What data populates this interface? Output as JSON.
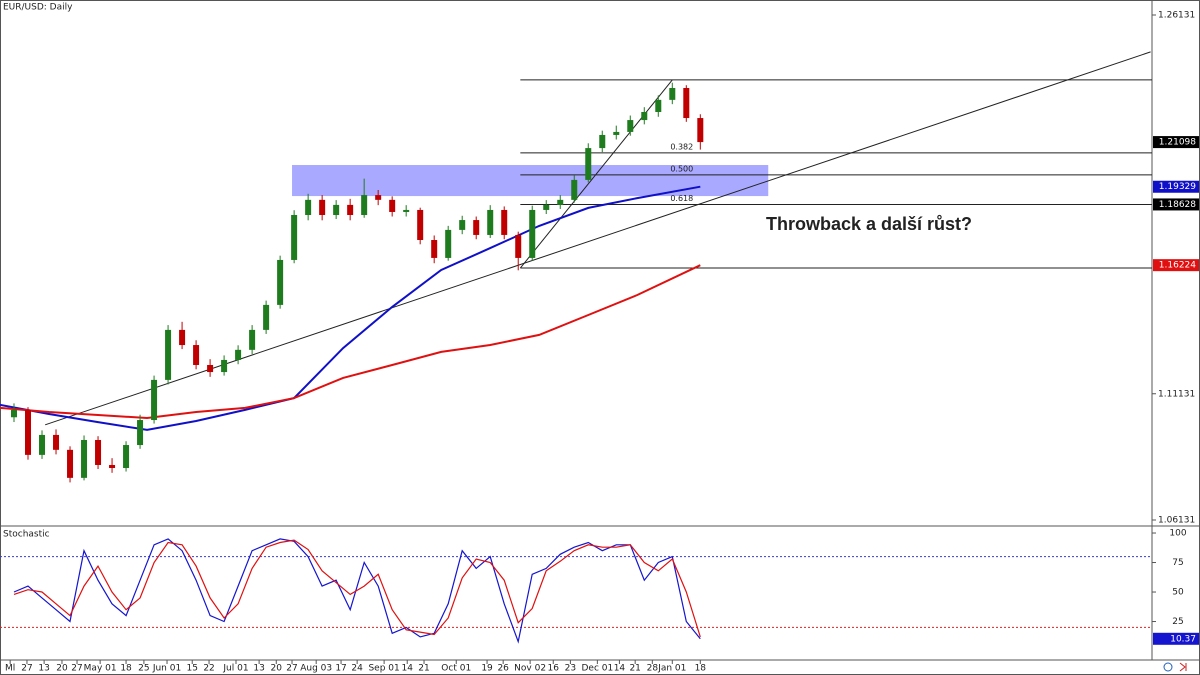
{
  "chart_data": [
    {
      "type": "candlestick",
      "title": "EUR/USD: Daily",
      "x": [
        4,
        8,
        12,
        16,
        20,
        24,
        28,
        32,
        36,
        40,
        44,
        48,
        52,
        56,
        60,
        64,
        68,
        72,
        76,
        80,
        84,
        88,
        92,
        96,
        100,
        104,
        108,
        112,
        116,
        120,
        124,
        128,
        132,
        136,
        140,
        144,
        148,
        152,
        156,
        160,
        164,
        168,
        172,
        176,
        180,
        184,
        188,
        192,
        196,
        200
      ],
      "candles": [
        [
          1.102,
          1.1075,
          1.1001,
          1.1049
        ],
        [
          1.1049,
          1.106,
          1.0852,
          1.0871
        ],
        [
          1.0871,
          1.0968,
          1.0855,
          1.095
        ],
        [
          1.095,
          1.0972,
          1.0873,
          1.0891
        ],
        [
          1.0891,
          1.0905,
          1.0762,
          1.078
        ],
        [
          1.078,
          1.0948,
          1.077,
          1.093
        ],
        [
          1.093,
          1.0945,
          1.0815,
          1.0831
        ],
        [
          1.0831,
          1.0858,
          1.08,
          1.0819
        ],
        [
          1.0819,
          1.0925,
          1.0805,
          1.091
        ],
        [
          1.091,
          1.103,
          1.0895,
          1.1009
        ],
        [
          1.1009,
          1.1185,
          1.0995,
          1.1168
        ],
        [
          1.1168,
          1.1385,
          1.115,
          1.1366
        ],
        [
          1.1366,
          1.1398,
          1.129,
          1.1306
        ],
        [
          1.1306,
          1.1325,
          1.121,
          1.1227
        ],
        [
          1.1227,
          1.125,
          1.118,
          1.1199
        ],
        [
          1.1199,
          1.1265,
          1.1185,
          1.1247
        ],
        [
          1.1247,
          1.1305,
          1.123,
          1.1287
        ],
        [
          1.1287,
          1.1385,
          1.127,
          1.1366
        ],
        [
          1.1366,
          1.1482,
          1.135,
          1.1465
        ],
        [
          1.1465,
          1.166,
          1.145,
          1.1643
        ],
        [
          1.1643,
          1.184,
          1.163,
          1.1821
        ],
        [
          1.1821,
          1.1905,
          1.18,
          1.1881
        ],
        [
          1.1881,
          1.19,
          1.18,
          1.1821
        ],
        [
          1.1821,
          1.188,
          1.1805,
          1.1861
        ],
        [
          1.1861,
          1.1885,
          1.18,
          1.1821
        ],
        [
          1.1821,
          1.1965,
          1.181,
          1.19
        ],
        [
          1.19,
          1.192,
          1.186,
          1.1881
        ],
        [
          1.1881,
          1.1895,
          1.1815,
          1.1833
        ],
        [
          1.1833,
          1.186,
          1.1815,
          1.1841
        ],
        [
          1.1841,
          1.185,
          1.1705,
          1.1722
        ],
        [
          1.1722,
          1.174,
          1.163,
          1.1651
        ],
        [
          1.1651,
          1.1778,
          1.164,
          1.1762
        ],
        [
          1.1762,
          1.1818,
          1.1745,
          1.1801
        ],
        [
          1.1801,
          1.1815,
          1.1725,
          1.1742
        ],
        [
          1.1742,
          1.186,
          1.173,
          1.1841
        ],
        [
          1.1841,
          1.1855,
          1.1725,
          1.1742
        ],
        [
          1.1742,
          1.1755,
          1.1602,
          1.1651
        ],
        [
          1.1651,
          1.1858,
          1.164,
          1.1841
        ],
        [
          1.1841,
          1.188,
          1.1825,
          1.1861
        ],
        [
          1.1861,
          1.19,
          1.1845,
          1.1881
        ],
        [
          1.1881,
          1.1978,
          1.187,
          1.196
        ],
        [
          1.196,
          1.2105,
          1.195,
          1.2086
        ],
        [
          1.2086,
          1.2155,
          1.207,
          1.2138
        ],
        [
          1.2138,
          1.2175,
          1.212,
          1.215
        ],
        [
          1.215,
          1.2215,
          1.2135,
          1.2197
        ],
        [
          1.2197,
          1.2248,
          1.218,
          1.2229
        ],
        [
          1.2229,
          1.2295,
          1.221,
          1.2277
        ],
        [
          1.2277,
          1.2345,
          1.226,
          1.2324
        ],
        [
          1.2324,
          1.2335,
          1.219,
          1.2205
        ],
        [
          1.2205,
          1.222,
          1.208,
          1.21098
        ]
      ],
      "up_color": "#1e7b1e",
      "down_color": "#c00000",
      "series": [
        {
          "color": "#1010c8",
          "x": [
            0,
            14,
            28,
            42,
            56,
            70,
            84,
            98,
            112,
            126,
            140,
            154,
            168,
            182,
            200
          ],
          "values": [
            1.1069,
            1.1033,
            1.1001,
            1.097,
            1.1005,
            1.1049,
            1.1096,
            1.1294,
            1.1457,
            1.1603,
            1.169,
            1.1778,
            1.1849,
            1.1888,
            1.19329
          ]
        },
        {
          "color": "#e01010",
          "x": [
            0,
            14,
            28,
            42,
            56,
            70,
            84,
            98,
            112,
            126,
            140,
            154,
            168,
            182,
            200
          ],
          "values": [
            1.1057,
            1.1041,
            1.1029,
            1.1017,
            1.1041,
            1.1057,
            1.1096,
            1.1176,
            1.1227,
            1.1279,
            1.1306,
            1.1346,
            1.1425,
            1.1504,
            1.16224
          ]
        }
      ],
      "zone": {
        "x": [
          83.4,
          219.4
        ],
        "y": [
          1.1896,
          1.2019
        ],
        "color": "#8c8cff"
      },
      "trendlines": [
        {
          "x": [
            12.9,
            328.6
          ],
          "y": [
            1.099,
            1.2467
          ]
        },
        {
          "x": [
            148.6,
            192
          ],
          "y": [
            1.1611,
            1.2356
          ]
        }
      ],
      "fib": {
        "x": [
          148.6,
          329
        ],
        "levels": [
          {
            "price": 1.2356
          },
          {
            "price": 1.2067,
            "label": "0.382"
          },
          {
            "price": 1.198,
            "label": "0.500"
          },
          {
            "price": 1.18628,
            "label": "0.618"
          },
          {
            "price": 1.1611
          }
        ]
      },
      "annotation": "Throwback a další růst?",
      "xlim": [
        0,
        329
      ],
      "ylim": [
        1.05933,
        1.26725
      ],
      "yticks": [
        1.26131,
        1.11131,
        1.06131
      ],
      "xticks": [
        {
          "value": 2.9,
          "label": "Ml"
        },
        {
          "value": 7.7,
          "label": "27"
        },
        {
          "value": 12.6,
          "label": "13"
        },
        {
          "value": 17.7,
          "label": "20"
        },
        {
          "value": 22,
          "label": "27"
        },
        {
          "value": 28.6,
          "label": "May 01"
        },
        {
          "value": 36,
          "label": "18"
        },
        {
          "value": 41.1,
          "label": "25"
        },
        {
          "value": 47.7,
          "label": "Jun 01"
        },
        {
          "value": 54.9,
          "label": "15"
        },
        {
          "value": 59.7,
          "label": "22"
        },
        {
          "value": 67.4,
          "label": "Jul 01"
        },
        {
          "value": 74,
          "label": "13"
        },
        {
          "value": 78.9,
          "label": "20"
        },
        {
          "value": 83.4,
          "label": "27"
        },
        {
          "value": 90.3,
          "label": "Aug 03"
        },
        {
          "value": 97.4,
          "label": "17"
        },
        {
          "value": 102,
          "label": "24"
        },
        {
          "value": 109.7,
          "label": "Sep 01"
        },
        {
          "value": 116.3,
          "label": "14"
        },
        {
          "value": 121.1,
          "label": "21"
        },
        {
          "value": 130.3,
          "label": "Oct 01"
        },
        {
          "value": 139.1,
          "label": "19"
        },
        {
          "value": 143.7,
          "label": "26"
        },
        {
          "value": 151.4,
          "label": "Nov 02"
        },
        {
          "value": 158,
          "label": "16"
        },
        {
          "value": 162.9,
          "label": "23"
        },
        {
          "value": 170.6,
          "label": "Dec 01"
        },
        {
          "value": 176.9,
          "label": "14"
        },
        {
          "value": 181.4,
          "label": "21"
        },
        {
          "value": 186.3,
          "label": "28"
        },
        {
          "value": 192,
          "label": "Jan 01"
        },
        {
          "value": 200,
          "label": "18"
        }
      ]
    },
    {
      "type": "line",
      "title": "Stochastic",
      "x": [
        4,
        8,
        12,
        16,
        20,
        24,
        28,
        32,
        36,
        40,
        44,
        48,
        52,
        56,
        60,
        64,
        68,
        72,
        76,
        80,
        84,
        88,
        92,
        96,
        100,
        104,
        108,
        112,
        116,
        120,
        124,
        128,
        132,
        136,
        140,
        144,
        148,
        152,
        156,
        160,
        164,
        168,
        172,
        176,
        180,
        184,
        188,
        192,
        196,
        200
      ],
      "series": [
        {
          "color": "#1515d0",
          "values": [
            50,
            55,
            45,
            35,
            25,
            85,
            60,
            40,
            30,
            60,
            90,
            95,
            85,
            60,
            30,
            25,
            55,
            85,
            90,
            95,
            93,
            80,
            55,
            60,
            35,
            75,
            55,
            15,
            20,
            12,
            15,
            40,
            85,
            70,
            80,
            40,
            8,
            65,
            70,
            82,
            88,
            92,
            85,
            90,
            90,
            60,
            75,
            80,
            25,
            10.37
          ]
        },
        {
          "color": "#e01010",
          "values": [
            48,
            52,
            50,
            40,
            30,
            55,
            72,
            50,
            35,
            45,
            75,
            92,
            90,
            72,
            45,
            28,
            40,
            70,
            88,
            92,
            94,
            86,
            68,
            58,
            48,
            55,
            65,
            35,
            18,
            16,
            14,
            28,
            62,
            78,
            75,
            60,
            24,
            36,
            68,
            76,
            85,
            90,
            88,
            88,
            90,
            75,
            68,
            78,
            50,
            12
          ]
        }
      ],
      "levels": [
        {
          "value": 80,
          "color": "#3a3ad0"
        },
        {
          "value": 20,
          "color": "#e02020"
        }
      ],
      "xlim": [
        0,
        329
      ],
      "ylim": [
        -7.6,
        105.1
      ],
      "yticks": [
        100,
        75,
        50,
        25
      ]
    }
  ]
}
